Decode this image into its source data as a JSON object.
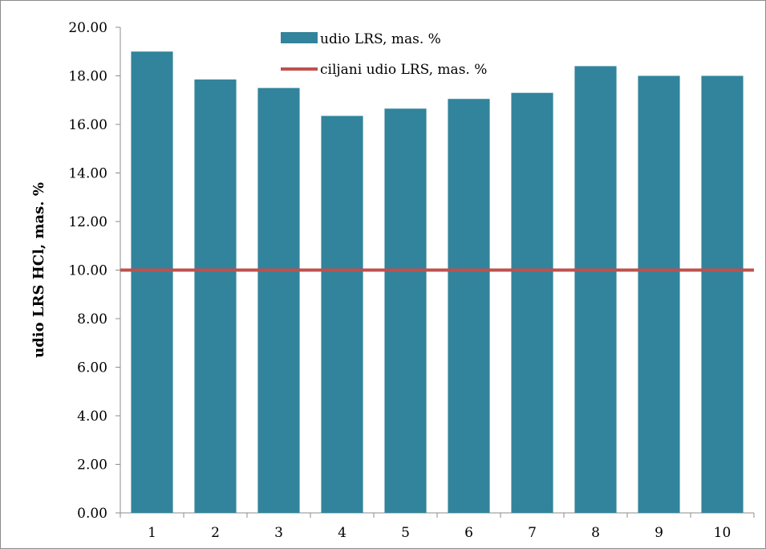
{
  "chart_data": {
    "type": "bar",
    "title": "",
    "xlabel": "",
    "ylabel": "udio LRS HCl, mas. %",
    "ylim": [
      0,
      20
    ],
    "y_tick_step": 2,
    "y_tick_labels": [
      "0.00",
      "2.00",
      "4.00",
      "6.00",
      "8.00",
      "10.00",
      "12.00",
      "14.00",
      "16.00",
      "18.00",
      "20.00"
    ],
    "categories": [
      "1",
      "2",
      "3",
      "4",
      "5",
      "6",
      "7",
      "8",
      "9",
      "10"
    ],
    "series": [
      {
        "name": "udio LRS, mas. %",
        "kind": "bar",
        "color": "#31849b",
        "values": [
          19.0,
          17.85,
          17.5,
          16.35,
          16.65,
          17.05,
          17.3,
          18.4,
          18.0,
          18.0
        ]
      },
      {
        "name": "ciljani udio LRS, mas. %",
        "kind": "reference-line",
        "color": "#c0504d",
        "value": 10.0
      }
    ],
    "legend_position": "top-center",
    "grid": false
  }
}
